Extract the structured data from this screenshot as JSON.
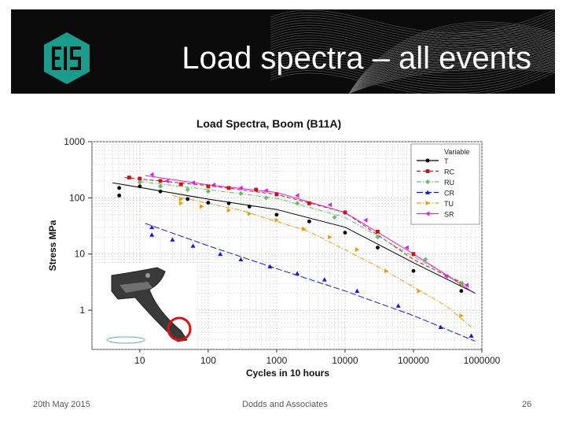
{
  "slide": {
    "title": "Load spectra – all events",
    "footer_date": "20th May 2015",
    "footer_company": "Dodds and Associates",
    "page_number": "26"
  },
  "logo": {
    "text": "EIS",
    "color": "#1a9b8c"
  },
  "chart_data": {
    "type": "scatter",
    "title": "Load Spectra, Boom (B11A)",
    "xlabel": "Cycles in 10 hours",
    "ylabel": "Stress MPa",
    "x_scale": "log",
    "y_scale": "log",
    "xlim": [
      2,
      1000000
    ],
    "ylim": [
      0.2,
      1000
    ],
    "x_ticks": [
      {
        "value": 10,
        "label": "10"
      },
      {
        "value": 100,
        "label": "100"
      },
      {
        "value": 1000,
        "label": "1000"
      },
      {
        "value": 10000,
        "label": "10000"
      },
      {
        "value": 100000,
        "label": "100000"
      },
      {
        "value": 1000000,
        "label": "1000000"
      }
    ],
    "y_ticks": [
      {
        "value": 1000,
        "label": "1000"
      },
      {
        "value": 100,
        "label": "100"
      },
      {
        "value": 10,
        "label": "10"
      },
      {
        "value": 1,
        "label": "1"
      }
    ],
    "grid": true,
    "legend": {
      "title": "Variable",
      "placement": "top-right",
      "entries": [
        {
          "label": "T",
          "color": "#000000",
          "marker": "circle",
          "dash": "solid"
        },
        {
          "label": "RC",
          "color": "#cc1111",
          "marker": "square",
          "dash": "dash"
        },
        {
          "label": "RU",
          "color": "#66bb66",
          "marker": "diamond",
          "dash": "dashdot"
        },
        {
          "label": "CR",
          "color": "#1a1acc",
          "marker": "triangle",
          "dash": "longdash"
        },
        {
          "label": "TU",
          "color": "#e89a10",
          "marker": "triangle-right",
          "dash": "dashdot"
        },
        {
          "label": "SR",
          "color": "#dd22dd",
          "marker": "triangle-left",
          "dash": "solid"
        }
      ]
    },
    "series": [
      {
        "name": "T",
        "color": "#000000",
        "marker": "circle",
        "points": [
          [
            5,
            150
          ],
          [
            5,
            110
          ],
          [
            10,
            160
          ],
          [
            20,
            130
          ],
          [
            50,
            95
          ],
          [
            100,
            82
          ],
          [
            200,
            80
          ],
          [
            400,
            70
          ],
          [
            1000,
            50
          ],
          [
            3000,
            38
          ],
          [
            10000,
            24
          ],
          [
            30000,
            13
          ],
          [
            100000,
            5
          ],
          [
            500000,
            2.2
          ]
        ],
        "fit": [
          [
            4,
            185
          ],
          [
            100,
            95
          ],
          [
            1000,
            62
          ],
          [
            10000,
            30
          ],
          [
            100000,
            7
          ],
          [
            800000,
            2
          ]
        ]
      },
      {
        "name": "RC",
        "color": "#cc1111",
        "marker": "square",
        "points": [
          [
            7,
            230
          ],
          [
            10,
            220
          ],
          [
            20,
            200
          ],
          [
            40,
            175
          ],
          [
            100,
            160
          ],
          [
            200,
            150
          ],
          [
            500,
            140
          ],
          [
            1000,
            115
          ],
          [
            3000,
            80
          ],
          [
            10000,
            55
          ],
          [
            30000,
            25
          ],
          [
            100000,
            10
          ],
          [
            500000,
            3
          ]
        ],
        "fit": [
          [
            6,
            230
          ],
          [
            100,
            165
          ],
          [
            1000,
            115
          ],
          [
            10000,
            55
          ],
          [
            100000,
            8
          ],
          [
            700000,
            2.5
          ]
        ]
      },
      {
        "name": "RU",
        "color": "#66bb66",
        "marker": "diamond",
        "points": [
          [
            10,
            190
          ],
          [
            20,
            160
          ],
          [
            50,
            140
          ],
          [
            100,
            130
          ],
          [
            300,
            120
          ],
          [
            700,
            100
          ],
          [
            2000,
            80
          ],
          [
            7000,
            45
          ],
          [
            30000,
            20
          ],
          [
            150000,
            8
          ],
          [
            500000,
            3
          ]
        ],
        "fit": [
          [
            10,
            195
          ],
          [
            100,
            140
          ],
          [
            1000,
            98
          ],
          [
            10000,
            45
          ],
          [
            100000,
            9
          ],
          [
            700000,
            2.5
          ]
        ]
      },
      {
        "name": "CR",
        "color": "#1a1acc",
        "marker": "triangle",
        "points": [
          [
            15,
            30
          ],
          [
            15,
            22
          ],
          [
            30,
            18
          ],
          [
            60,
            14
          ],
          [
            150,
            10
          ],
          [
            300,
            8
          ],
          [
            800,
            6
          ],
          [
            2000,
            4.5
          ],
          [
            5000,
            3.5
          ],
          [
            15000,
            2.2
          ],
          [
            60000,
            1.2
          ],
          [
            250000,
            0.5
          ],
          [
            700000,
            0.35
          ]
        ],
        "fit": [
          [
            12,
            35
          ],
          [
            100,
            14
          ],
          [
            1000,
            5.5
          ],
          [
            10000,
            2.2
          ],
          [
            100000,
            0.8
          ],
          [
            800000,
            0.28
          ]
        ]
      },
      {
        "name": "TU",
        "color": "#e89a10",
        "marker": "triangle-right",
        "points": [
          [
            40,
            95
          ],
          [
            40,
            80
          ],
          [
            80,
            70
          ],
          [
            200,
            60
          ],
          [
            400,
            52
          ],
          [
            1000,
            40
          ],
          [
            2500,
            28
          ],
          [
            6000,
            20
          ],
          [
            15000,
            12
          ],
          [
            40000,
            5
          ],
          [
            120000,
            2.2
          ],
          [
            500000,
            0.8
          ]
        ],
        "fit": [
          [
            30,
            110
          ],
          [
            300,
            60
          ],
          [
            3000,
            25
          ],
          [
            30000,
            6
          ],
          [
            300000,
            1.2
          ],
          [
            700000,
            0.5
          ]
        ]
      },
      {
        "name": "SR",
        "color": "#dd22dd",
        "marker": "triangle-left",
        "points": [
          [
            15,
            260
          ],
          [
            25,
            200
          ],
          [
            60,
            185
          ],
          [
            120,
            170
          ],
          [
            300,
            150
          ],
          [
            700,
            135
          ],
          [
            2000,
            110
          ],
          [
            6000,
            75
          ],
          [
            20000,
            40
          ],
          [
            80000,
            13
          ],
          [
            300000,
            4
          ],
          [
            600000,
            2.8
          ]
        ],
        "fit": [
          [
            12,
            250
          ],
          [
            100,
            170
          ],
          [
            1000,
            125
          ],
          [
            10000,
            55
          ],
          [
            100000,
            10
          ],
          [
            700000,
            2.2
          ]
        ]
      }
    ]
  }
}
